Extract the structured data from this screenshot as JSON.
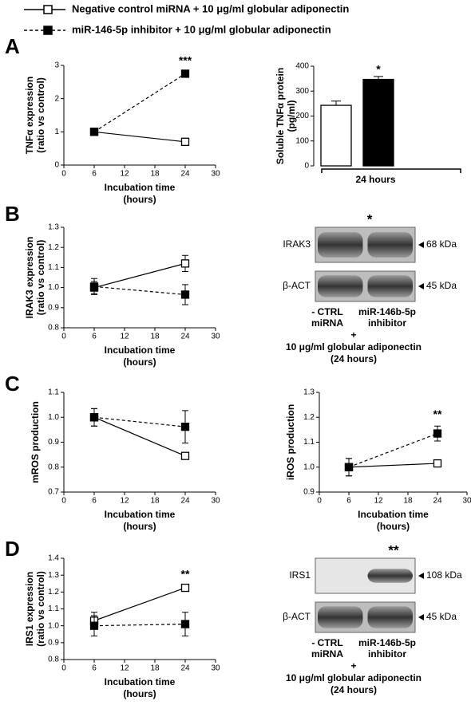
{
  "legend_title": null,
  "panel_labels": [
    "A",
    "B",
    "C",
    "D"
  ],
  "chart_data": [
    {
      "type": "line",
      "y_label": [
        "TNFα expression",
        "(ratio vs control)"
      ],
      "x_label": [
        "Incubation time",
        "(hours)"
      ],
      "x": [
        6,
        24
      ],
      "xlim": [
        0,
        30
      ],
      "xticks": [
        0,
        6,
        12,
        18,
        24,
        30
      ],
      "ylim": [
        0,
        3
      ],
      "yticks": [
        0,
        1,
        2,
        3
      ],
      "annotation": "***",
      "series": [
        {
          "name": "Negative control miRNA + 10 μg/ml globular adiponectin",
          "color": "#ffffff",
          "dashed": false,
          "values": [
            1.0,
            0.7
          ],
          "errors": [
            0.02,
            0.03
          ]
        },
        {
          "name": "miR-146-5p inhibitor + 10 μg/ml globular adiponectin",
          "color": "#000000",
          "dashed": true,
          "values": [
            1.0,
            2.75
          ],
          "errors": [
            0.02,
            0.04
          ]
        }
      ]
    },
    {
      "type": "bar",
      "y_label": [
        "Soluble TNFα protein",
        "(pg/ml)"
      ],
      "x_label": "24 hours",
      "categories": [
        null,
        null
      ],
      "values": [
        243,
        347
      ],
      "errors": [
        17,
        12
      ],
      "colors": [
        "#ffffff",
        "#000000"
      ],
      "ylim": [
        0,
        400
      ],
      "yticks": [
        0,
        100,
        200,
        300,
        400
      ],
      "annotation": "*"
    },
    {
      "type": "line",
      "y_label": [
        "IRAK3 expression",
        "(ratio vs control)"
      ],
      "x_label": [
        "Incubation time",
        "(hours)"
      ],
      "x": [
        6,
        24
      ],
      "xlim": [
        0,
        30
      ],
      "xticks": [
        0,
        6,
        12,
        18,
        24,
        30
      ],
      "ylim": [
        0.8,
        1.3
      ],
      "yticks": [
        0.8,
        0.9,
        {
          "value": 1,
          "label": "1.0"
        },
        1.1,
        1.2,
        1.3
      ],
      "series": [
        {
          "color": "#ffffff",
          "dashed": false,
          "values": [
            1.0,
            1.12
          ],
          "errors": [
            0.03,
            0.04
          ]
        },
        {
          "color": "#000000",
          "dashed": true,
          "values": [
            1.005,
            0.965
          ],
          "errors": [
            0.04,
            0.05
          ]
        }
      ]
    },
    {
      "type": "line",
      "y_label": [
        "mROS production"
      ],
      "x_label": [
        "Incubation time",
        "(hours)"
      ],
      "x": [
        6,
        24
      ],
      "xlim": [
        0,
        30
      ],
      "xticks": [
        0,
        6,
        12,
        18,
        24,
        30
      ],
      "ylim": [
        0.7,
        1.1
      ],
      "yticks": [
        0.7,
        0.8,
        0.9,
        {
          "value": 1,
          "label": "1.0"
        },
        1.1
      ],
      "series": [
        {
          "color": "#ffffff",
          "dashed": false,
          "values": [
            1.0,
            0.845
          ],
          "errors": [
            0.035,
            0.005
          ]
        },
        {
          "color": "#000000",
          "dashed": true,
          "values": [
            1.0,
            0.962
          ],
          "errors": [
            0.035,
            0.065
          ]
        }
      ]
    },
    {
      "type": "line",
      "y_label": [
        "iROS production"
      ],
      "x_label": [
        "Incubation time",
        "(hours)"
      ],
      "x": [
        6,
        24
      ],
      "xlim": [
        0,
        30
      ],
      "xticks": [
        0,
        6,
        12,
        18,
        24,
        30
      ],
      "ylim": [
        0.9,
        1.3
      ],
      "yticks": [
        0.9,
        {
          "value": 1,
          "label": "1.0"
        },
        1.1,
        1.2,
        1.3
      ],
      "annotation": "**",
      "series": [
        {
          "color": "#ffffff",
          "dashed": false,
          "values": [
            1.0,
            1.015
          ],
          "errors": [
            0.035,
            0.008
          ]
        },
        {
          "color": "#000000",
          "dashed": true,
          "values": [
            1.0,
            1.135
          ],
          "errors": [
            0.035,
            0.03
          ]
        }
      ]
    },
    {
      "type": "line",
      "y_label": [
        "IRS1 expression",
        "(ratio vs control)"
      ],
      "x_label": [
        "Incubation time",
        "(hours)"
      ],
      "x": [
        6,
        24
      ],
      "xlim": [
        0,
        30
      ],
      "xticks": [
        0,
        6,
        12,
        18,
        24,
        30
      ],
      "ylim": [
        0.8,
        1.4
      ],
      "yticks": [
        0.8,
        0.9,
        {
          "value": 1,
          "label": "1.0"
        },
        1.1,
        1.2,
        1.3,
        1.4
      ],
      "annotation": "**",
      "series": [
        {
          "color": "#ffffff",
          "dashed": false,
          "values": [
            1.03,
            1.225
          ],
          "errors": [
            0.05,
            0.01
          ]
        },
        {
          "color": "#000000",
          "dashed": true,
          "values": [
            1.0,
            1.01
          ],
          "errors": [
            0.06,
            0.07
          ]
        }
      ]
    }
  ],
  "blots": [
    {
      "significance": "*",
      "bands": [
        {
          "protein": "IRAK3",
          "size": "68 kDa"
        },
        {
          "protein": "β-ACT",
          "size": "45 kDa"
        }
      ],
      "lanes": [
        [
          "- CTRL",
          "miRNA"
        ],
        [
          "miR-146b-5p",
          "inhibitor"
        ]
      ],
      "plus": "+",
      "treatment": "10 μg/ml globular adiponectin",
      "duration": "(24 hours)"
    },
    {
      "significance": "**",
      "bands": [
        {
          "protein": "IRS1",
          "size": "108 kDa"
        },
        {
          "protein": "β-ACT",
          "size": "45 kDa"
        }
      ],
      "lanes": [
        [
          "- CTRL",
          "miRNA"
        ],
        [
          "miR-146b-5p",
          "inhibitor"
        ]
      ],
      "plus": "+",
      "treatment": "10 μg/ml globular adiponectin",
      "duration": "(24 hours)"
    }
  ]
}
